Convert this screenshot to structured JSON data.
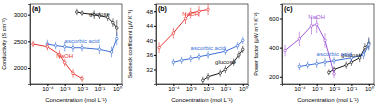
{
  "chart_data": [
    {
      "type": "line",
      "title": "(a)",
      "x_label": "Concentration (mol L⁻¹)",
      "y_label": "Conductivity (S cm⁻¹)",
      "log": "x",
      "marker": "circle",
      "xlim": [
        1e-05,
        2
      ],
      "xticks": [
        {
          "value": 0.0001,
          "label": "10⁻⁴"
        },
        {
          "value": 0.001,
          "label": "10⁻³"
        },
        {
          "value": 0.01,
          "label": "10⁻²"
        },
        {
          "value": 0.1,
          "label": "10⁻¹"
        },
        {
          "value": 1,
          "label": "10⁰"
        }
      ],
      "ylim": [
        1700,
        3200
      ],
      "yticks": [
        2000,
        2500,
        3000
      ],
      "series": [
        {
          "name": "glucose",
          "color": "#1a1a1a",
          "x": [
            0.005,
            0.01,
            0.05,
            0.1,
            0.3,
            0.6,
            1
          ],
          "values": [
            3050,
            3030,
            3000,
            2980,
            2950,
            2850,
            2750
          ],
          "errors": [
            60,
            50,
            80,
            60,
            70,
            80,
            150
          ]
        },
        {
          "name": "ascorbic acid",
          "color": "#3b6fd6",
          "x": [
            0.0001,
            0.0003,
            0.001,
            0.003,
            0.01,
            0.1,
            0.5,
            1
          ],
          "values": [
            2450,
            2420,
            2400,
            2380,
            2380,
            2350,
            2300,
            2550
          ],
          "errors": [
            80,
            70,
            90,
            80,
            70,
            90,
            100,
            120
          ]
        },
        {
          "name": "NaOH",
          "color": "#e8322f",
          "x": [
            1.5e-05,
            0.0001,
            0.0005,
            0.001,
            0.003,
            0.01
          ],
          "values": [
            2450,
            2400,
            2250,
            2100,
            1900,
            1800
          ],
          "errors": [
            60,
            70,
            80,
            70,
            80,
            60
          ]
        }
      ]
    },
    {
      "type": "line",
      "title": "(b)",
      "x_label": "Concentration (mol L⁻¹)",
      "y_label": "Seebeck coefficient (μV K⁻¹)",
      "log": "x",
      "marker": "circle",
      "xlim": [
        1e-05,
        2
      ],
      "xticks": [
        {
          "value": 0.0001,
          "label": "10⁻⁴"
        },
        {
          "value": 0.001,
          "label": "10⁻³"
        },
        {
          "value": 0.01,
          "label": "10⁻²"
        },
        {
          "value": 0.1,
          "label": "10⁻¹"
        },
        {
          "value": 1,
          "label": "10⁰"
        }
      ],
      "ylim": [
        28,
        50
      ],
      "yticks": [
        32,
        36,
        40,
        44,
        48
      ],
      "series": [
        {
          "name": "glucose",
          "color": "#1a1a1a",
          "x": [
            0.005,
            0.01,
            0.05,
            0.1,
            0.3,
            0.6,
            1
          ],
          "values": [
            29,
            30,
            31,
            32,
            34,
            36,
            37.5
          ],
          "errors": [
            1,
            1,
            1,
            1,
            1,
            1,
            1
          ]
        },
        {
          "name": "ascorbic acid",
          "color": "#3b6fd6",
          "x": [
            0.0001,
            0.0003,
            0.001,
            0.003,
            0.01,
            0.1,
            0.5,
            1
          ],
          "values": [
            34,
            34.5,
            35,
            35.5,
            36,
            37,
            38.5,
            40
          ],
          "errors": [
            1,
            1,
            1,
            1,
            1,
            1,
            1,
            1
          ]
        },
        {
          "name": "NaOH",
          "color": "#e8322f",
          "x": [
            1.5e-05,
            0.0001,
            0.0005,
            0.001,
            0.003,
            0.01
          ],
          "values": [
            38,
            42,
            46,
            47.5,
            48,
            48.5
          ],
          "errors": [
            1.5,
            1.5,
            1.5,
            1.5,
            1.5,
            1.5
          ]
        }
      ]
    },
    {
      "type": "line",
      "title": "(c)",
      "x_label": "Concentration (mol L⁻¹)",
      "y_label": "Power factor (μW m⁻¹ K⁻²)",
      "log": "x",
      "marker": "circle",
      "xlim": [
        1e-05,
        2
      ],
      "xticks": [
        {
          "value": 0.0001,
          "label": "10⁻⁴"
        },
        {
          "value": 0.001,
          "label": "10⁻³"
        },
        {
          "value": 0.01,
          "label": "10⁻²"
        },
        {
          "value": 0.1,
          "label": "10⁻¹"
        },
        {
          "value": 1,
          "label": "10⁰"
        }
      ],
      "ylim": [
        150,
        700
      ],
      "yticks": [
        200,
        400,
        600
      ],
      "series": [
        {
          "name": "glucose",
          "color": "#1a1a1a",
          "x": [
            0.005,
            0.01,
            0.05,
            0.1,
            0.3,
            0.6,
            1
          ],
          "values": [
            230,
            250,
            280,
            300,
            330,
            400,
            430
          ],
          "errors": [
            20,
            20,
            25,
            25,
            30,
            30,
            40
          ]
        },
        {
          "name": "ascorbic acid",
          "color": "#3b6fd6",
          "x": [
            0.0001,
            0.0003,
            0.001,
            0.003,
            0.01,
            0.1,
            0.5,
            1
          ],
          "values": [
            270,
            280,
            290,
            300,
            310,
            330,
            350,
            420
          ],
          "errors": [
            25,
            25,
            30,
            30,
            25,
            30,
            30,
            40
          ]
        },
        {
          "name": "NaOH",
          "color": "#a259d9",
          "x": [
            1.5e-05,
            0.0001,
            0.0005,
            0.001,
            0.003,
            0.01
          ],
          "values": [
            380,
            460,
            550,
            560,
            450,
            220
          ],
          "errors": [
            40,
            50,
            60,
            60,
            50,
            30
          ]
        }
      ]
    }
  ]
}
